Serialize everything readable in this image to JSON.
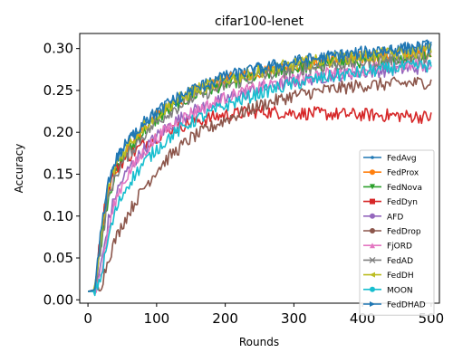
{
  "chart_data": {
    "type": "line",
    "title": "cifar100-lenet",
    "xlabel": "Rounds",
    "ylabel": "Accuracy",
    "xlim": [
      -12,
      512
    ],
    "ylim": [
      -0.004,
      0.318
    ],
    "xticks": [
      0,
      100,
      200,
      300,
      400,
      500
    ],
    "xtick_labels": [
      "0",
      "100",
      "200",
      "300",
      "400",
      "500"
    ],
    "yticks": [
      0.0,
      0.05,
      0.1,
      0.15,
      0.2,
      0.25,
      0.3
    ],
    "ytick_labels": [
      "0.00",
      "0.05",
      "0.10",
      "0.15",
      "0.20",
      "0.25",
      "0.30"
    ],
    "grid": false,
    "legend_position": "lower-right",
    "x": [
      0,
      10,
      20,
      30,
      40,
      50,
      60,
      80,
      100,
      120,
      150,
      200,
      250,
      300,
      350,
      400,
      450,
      500
    ],
    "series": [
      {
        "name": "FedAvg",
        "color": "#1f77b4",
        "marker": "dot",
        "values": [
          0.01,
          0.012,
          0.085,
          0.14,
          0.165,
          0.178,
          0.19,
          0.21,
          0.223,
          0.235,
          0.25,
          0.265,
          0.275,
          0.283,
          0.289,
          0.293,
          0.297,
          0.302
        ]
      },
      {
        "name": "FedProx",
        "color": "#ff7f0e",
        "marker": "circle",
        "values": [
          0.01,
          0.011,
          0.075,
          0.13,
          0.155,
          0.17,
          0.182,
          0.203,
          0.218,
          0.231,
          0.246,
          0.262,
          0.272,
          0.28,
          0.285,
          0.289,
          0.293,
          0.296
        ]
      },
      {
        "name": "FedNova",
        "color": "#2ca02c",
        "marker": "triangle-down",
        "values": [
          0.01,
          0.011,
          0.072,
          0.125,
          0.15,
          0.166,
          0.178,
          0.2,
          0.215,
          0.228,
          0.243,
          0.258,
          0.268,
          0.276,
          0.281,
          0.285,
          0.288,
          0.29
        ]
      },
      {
        "name": "FedDyn",
        "color": "#d62728",
        "marker": "square",
        "values": [
          0.01,
          0.012,
          0.09,
          0.135,
          0.155,
          0.165,
          0.172,
          0.185,
          0.195,
          0.203,
          0.212,
          0.221,
          0.225,
          0.223,
          0.222,
          0.221,
          0.22,
          0.218
        ]
      },
      {
        "name": "AFD",
        "color": "#9467bd",
        "marker": "circle",
        "values": [
          0.01,
          0.01,
          0.045,
          0.095,
          0.125,
          0.143,
          0.157,
          0.178,
          0.195,
          0.209,
          0.224,
          0.24,
          0.252,
          0.261,
          0.267,
          0.272,
          0.275,
          0.278
        ]
      },
      {
        "name": "FedDrop",
        "color": "#8c564b",
        "marker": "circle",
        "values": [
          0.01,
          0.01,
          0.02,
          0.05,
          0.072,
          0.09,
          0.105,
          0.132,
          0.155,
          0.172,
          0.193,
          0.215,
          0.232,
          0.244,
          0.251,
          0.256,
          0.258,
          0.26
        ]
      },
      {
        "name": "FjORD",
        "color": "#e377c2",
        "marker": "triangle-up",
        "values": [
          0.01,
          0.01,
          0.035,
          0.085,
          0.118,
          0.138,
          0.152,
          0.175,
          0.193,
          0.207,
          0.223,
          0.241,
          0.254,
          0.263,
          0.27,
          0.275,
          0.279,
          0.282
        ]
      },
      {
        "name": "FedAD",
        "color": "#7f7f7f",
        "marker": "x",
        "values": [
          0.01,
          0.011,
          0.07,
          0.123,
          0.148,
          0.163,
          0.175,
          0.196,
          0.212,
          0.225,
          0.24,
          0.256,
          0.267,
          0.275,
          0.28,
          0.284,
          0.288,
          0.291
        ]
      },
      {
        "name": "FedDH",
        "color": "#bcbd22",
        "marker": "triangle-left",
        "values": [
          0.01,
          0.012,
          0.08,
          0.135,
          0.16,
          0.174,
          0.186,
          0.206,
          0.221,
          0.233,
          0.248,
          0.263,
          0.273,
          0.281,
          0.287,
          0.291,
          0.294,
          0.298
        ]
      },
      {
        "name": "MOON",
        "color": "#17becf",
        "marker": "circle",
        "values": [
          0.01,
          0.01,
          0.03,
          0.075,
          0.105,
          0.125,
          0.14,
          0.162,
          0.18,
          0.195,
          0.212,
          0.232,
          0.247,
          0.258,
          0.266,
          0.272,
          0.277,
          0.28
        ]
      },
      {
        "name": "FedDHAD",
        "color": "#1f77b4",
        "marker": "triangle-right",
        "values": [
          0.01,
          0.012,
          0.088,
          0.142,
          0.166,
          0.179,
          0.191,
          0.211,
          0.224,
          0.236,
          0.25,
          0.266,
          0.276,
          0.284,
          0.29,
          0.295,
          0.299,
          0.303
        ]
      }
    ]
  }
}
